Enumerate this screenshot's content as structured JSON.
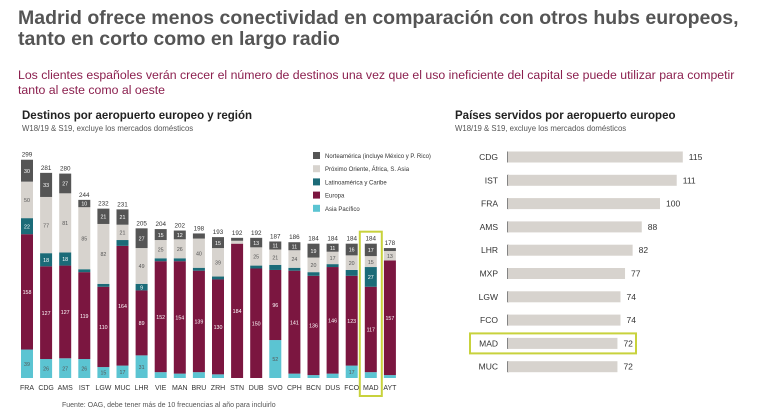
{
  "title": "Madrid ofrece menos conectividad en comparación con otros hubs europeos, tanto en corto como en largo radio",
  "subtitle": "Los clientes españoles verán crecer el número de destinos una vez que el uso ineficiente del capital se puede utilizar para competir tanto al este como al oeste",
  "source": "Fuente: OAG, debe tener más de 10 frecuencias al año para incluirlo",
  "chart_data": [
    {
      "type": "bar",
      "title": "Destinos por aeropuerto europeo y región",
      "subtitle": "W18/19 & S19, excluye los mercados domésticos",
      "stacked": true,
      "legend_position": "top-right",
      "highlight": "MAD",
      "categories": [
        "FRA",
        "CDG",
        "AMS",
        "IST",
        "LGW",
        "MUC",
        "LHR",
        "VIE",
        "MAN",
        "BRU",
        "ZRH",
        "STN",
        "DUB",
        "SVO",
        "CPH",
        "BCN",
        "DUS",
        "FCO",
        "MAD",
        "AYT"
      ],
      "totals": [
        299,
        281,
        280,
        244,
        232,
        231,
        205,
        204,
        202,
        198,
        193,
        192,
        192,
        187,
        186,
        184,
        184,
        184,
        184,
        178
      ],
      "series": [
        {
          "name": "Asia Pacífico",
          "color": "#5bc4d2",
          "values": [
            39,
            26,
            27,
            26,
            15,
            17,
            31,
            8,
            6,
            8,
            5,
            0,
            0,
            52,
            6,
            4,
            6,
            17,
            8,
            4
          ]
        },
        {
          "name": "Europa",
          "color": "#7b1640",
          "values": [
            158,
            127,
            127,
            119,
            110,
            164,
            89,
            152,
            154,
            139,
            130,
            184,
            150,
            96,
            141,
            136,
            146,
            123,
            117,
            157
          ]
        },
        {
          "name": "Latinoamérica y Caribe",
          "color": "#1b6b78",
          "values": [
            22,
            18,
            18,
            4,
            4,
            8,
            9,
            4,
            4,
            4,
            4,
            0,
            4,
            7,
            4,
            5,
            4,
            8,
            27,
            0
          ]
        },
        {
          "name": "Próximo Oriente, África, S. Asia",
          "color": "#d7d3ce",
          "values": [
            50,
            77,
            81,
            85,
            82,
            21,
            49,
            25,
            26,
            40,
            39,
            4,
            25,
            21,
            24,
            20,
            17,
            20,
            15,
            13
          ]
        },
        {
          "name": "Norteamérica (incluye México y P. Rico)",
          "color": "#555555",
          "values": [
            30,
            33,
            27,
            10,
            21,
            21,
            27,
            15,
            12,
            7,
            15,
            4,
            13,
            11,
            11,
            19,
            11,
            16,
            17,
            4
          ]
        }
      ],
      "ylim": [
        0,
        310
      ]
    },
    {
      "type": "bar",
      "orientation": "horizontal",
      "title": "Países servidos por aeropuerto europeo",
      "subtitle": "W18/19 & S19, excluye los mercados domésticos",
      "highlight": "MAD",
      "categories": [
        "CDG",
        "IST",
        "FRA",
        "AMS",
        "LHR",
        "MXP",
        "LGW",
        "FCO",
        "MAD",
        "MUC"
      ],
      "values": [
        115,
        111,
        100,
        88,
        82,
        77,
        74,
        74,
        72,
        72
      ],
      "bar_color": "#d7d3ce",
      "highlight_color": "#c8d23c"
    }
  ]
}
